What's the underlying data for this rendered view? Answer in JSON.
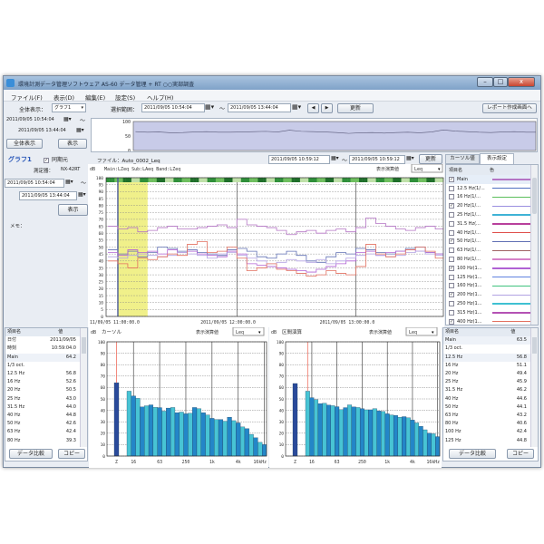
{
  "window": {
    "title": "環境計測データ管理ソフトウェア AS-60 データ管理 + RT ○○実部調査",
    "minimize": "–",
    "maximize": "□",
    "close": "x"
  },
  "menu": [
    "ファイル(F)",
    "表示(D)",
    "編集(E)",
    "設定(S)",
    "ヘルプ(H)"
  ],
  "toolbar": {
    "overall_label": "全体表示：",
    "graph_select": "グラフ1",
    "range_label": "選択範囲：",
    "range_start": "2011/09/05 10:54:04",
    "range_end": "2011/09/05 13:44:04",
    "tilde": "～",
    "prev": "◀",
    "next": "▶",
    "update": "更新",
    "report": "レポート作成画面へ"
  },
  "overview_side": {
    "start": "2011/09/05 10:54:04",
    "end": "2011/09/05 13:44:04",
    "all_button": "全体表示",
    "show_button": "表示"
  },
  "graph_panel": {
    "name": "グラフ1",
    "sync_label": "同期元",
    "sync_checked": true,
    "device_label": "測定器：",
    "device": "NX-42RT",
    "start": "2011/09/05 10:54:04",
    "end": "2011/09/05 13:44:04",
    "show_button": "表示",
    "memo_label": "メモ："
  },
  "main_header": {
    "file": "ファイル：Auto_0002_Leq",
    "cursor_start": "2011/09/05 10:59:12",
    "cursor_end": "2011/09/05 10:59:12",
    "update": "更新"
  },
  "tabs": [
    {
      "label": "カーソル値",
      "active": false
    },
    {
      "label": "表示設定",
      "active": true
    }
  ],
  "legend_list": {
    "col_name": "項目名",
    "col_color": "色",
    "items": [
      {
        "label": "Main",
        "checked": true,
        "color": "#b474c4"
      },
      {
        "label": "12.5 Hz(1/...",
        "checked": false,
        "color": "#4f6fc0"
      },
      {
        "label": "16 Hz(1/...",
        "checked": false,
        "color": "#5cbf5c"
      },
      {
        "label": "20 Hz(1/...",
        "checked": true,
        "color": "#9a8ee0"
      },
      {
        "label": "25 Hz(1/...",
        "checked": false,
        "color": "#3fb3d6"
      },
      {
        "label": "31.5 Hz(...",
        "checked": false,
        "color": "#b8409c"
      },
      {
        "label": "40 Hz(1/...",
        "checked": false,
        "color": "#e0504c"
      },
      {
        "label": "50 Hz(1/...",
        "checked": true,
        "color": "#6070b4"
      },
      {
        "label": "63 Hz(1/...",
        "checked": false,
        "color": "#a06262"
      },
      {
        "label": "80 Hz(1/...",
        "checked": false,
        "color": "#d682c8"
      },
      {
        "label": "100 Hz(1...",
        "checked": true,
        "color": "#b062d4"
      },
      {
        "label": "125 Hz(1...",
        "checked": false,
        "color": "#5f82e0"
      },
      {
        "label": "160 Hz(1...",
        "checked": false,
        "color": "#3fc27e"
      },
      {
        "label": "200 Hz(1...",
        "checked": true,
        "color": "#b2a2e2"
      },
      {
        "label": "250 Hz(1...",
        "checked": false,
        "color": "#3fc1d2"
      },
      {
        "label": "315 Hz(1...",
        "checked": false,
        "color": "#b452b4"
      },
      {
        "label": "400 Hz(1...",
        "checked": true,
        "color": "#e27060"
      }
    ]
  },
  "chart_data": [
    {
      "type": "line",
      "title": "",
      "unit_label": "dB",
      "info": "Main:LZeq Sub:LAeq Band:LZeq",
      "calc_label": "表示演算値",
      "calc_value": "Leq",
      "ylim": [
        0,
        100
      ],
      "yticks": [
        100,
        95,
        90,
        85,
        80,
        75,
        70,
        65,
        60,
        55,
        50,
        45,
        40,
        35,
        30,
        25,
        20,
        15,
        10,
        5,
        0
      ],
      "xlim": [
        "10:54:04",
        "13:44:04"
      ],
      "xtick_labels": [
        "11/09/05 11:00:00.0",
        "2011/09/05 12:00:00.0",
        "2011/09/05 13:00:00.0"
      ],
      "xticks": [
        "11:00",
        "12:00",
        "13:00"
      ],
      "highlight_range": [
        "11:00",
        "11:15"
      ],
      "highlight_color": "#f0f08a",
      "x": [
        "10:55",
        "11:00",
        "11:05",
        "11:10",
        "11:15",
        "11:20",
        "11:25",
        "11:30",
        "11:35",
        "11:40",
        "11:45",
        "11:50",
        "11:55",
        "12:00",
        "12:05",
        "12:10",
        "12:15",
        "12:20",
        "12:25",
        "12:30",
        "12:35",
        "12:40",
        "12:45",
        "12:50",
        "12:55",
        "13:00",
        "13:05",
        "13:10",
        "13:15",
        "13:20",
        "13:25",
        "13:30",
        "13:35",
        "13:40"
      ],
      "series": [
        {
          "name": "Main",
          "color": "#b474c4",
          "values": [
            65,
            63,
            64,
            61,
            62,
            64,
            65,
            63,
            63,
            64,
            65,
            66,
            64,
            70,
            66,
            65,
            64,
            62,
            59,
            61,
            62,
            60,
            62,
            63,
            61,
            64,
            71,
            67,
            65,
            63,
            62,
            64,
            65,
            63
          ]
        },
        {
          "name": "50 Hz",
          "color": "#6070b4",
          "values": [
            48,
            45,
            47,
            43,
            46,
            50,
            49,
            47,
            48,
            46,
            45,
            44,
            48,
            49,
            47,
            43,
            42,
            45,
            47,
            44,
            40,
            39,
            43,
            46,
            45,
            49,
            48,
            46,
            45,
            47,
            49,
            50,
            46,
            45
          ]
        },
        {
          "name": "100 Hz",
          "color": "#b062d4",
          "values": [
            46,
            44,
            48,
            46,
            47,
            45,
            48,
            46,
            47,
            45,
            44,
            43,
            47,
            45,
            38,
            37,
            36,
            35,
            34,
            33,
            32,
            34,
            36,
            38,
            40,
            46,
            47,
            44,
            46,
            47,
            48,
            47,
            46,
            45
          ]
        },
        {
          "name": "200 Hz",
          "color": "#b2a2e2",
          "values": [
            43,
            42,
            44,
            45,
            44,
            43,
            44,
            46,
            45,
            44,
            42,
            45,
            46,
            44,
            42,
            40,
            38,
            39,
            41,
            40,
            39,
            41,
            38,
            40,
            42,
            44,
            45,
            44,
            43,
            44,
            46,
            47,
            45,
            44
          ]
        },
        {
          "name": "400 Hz",
          "color": "#e27060",
          "values": [
            40,
            38,
            35,
            42,
            41,
            43,
            45,
            44,
            52,
            54,
            46,
            47,
            50,
            42,
            33,
            35,
            38,
            34,
            33,
            31,
            29,
            30,
            33,
            31,
            30,
            36,
            52,
            45,
            43,
            45,
            48,
            50,
            47,
            42
          ]
        }
      ]
    },
    {
      "type": "bar",
      "title": "カーソル",
      "unit_label": "dB",
      "calc_label": "表示演算値",
      "calc_value": "Leq",
      "ylim": [
        0,
        100
      ],
      "yticks": [
        100,
        90,
        80,
        70,
        60,
        50,
        40,
        30,
        20,
        10,
        0
      ],
      "xtick_labels": [
        "Z",
        "16",
        "63",
        "250",
        "1k",
        "4k",
        "16kHz"
      ],
      "categories": [
        "Main",
        "12.5",
        "16",
        "20",
        "25",
        "31.5",
        "40",
        "50",
        "63",
        "80",
        "100",
        "125",
        "160",
        "200",
        "250",
        "315",
        "400",
        "500",
        "630",
        "800",
        "1k",
        "1.25k",
        "1.6k",
        "2k",
        "2.5k",
        "3.15k",
        "4k",
        "5k",
        "6.3k",
        "8k",
        "10k",
        "12.5k",
        "16k"
      ],
      "values": [
        64.2,
        56.8,
        52.6,
        50.5,
        43.0,
        44.0,
        44.8,
        42.6,
        42.4,
        39.3,
        42,
        42.5,
        38,
        38.5,
        37,
        37.5,
        42.5,
        41.5,
        38,
        36,
        33,
        32,
        32,
        30.5,
        34,
        31,
        29,
        25.5,
        24,
        19,
        16,
        12,
        10
      ],
      "cursor": "Main"
    },
    {
      "type": "bar",
      "title": "区間演算",
      "unit_label": "dB",
      "calc_label": "表示演算値",
      "calc_value": "Leq",
      "ylim": [
        0,
        100
      ],
      "yticks": [
        100,
        90,
        80,
        70,
        60,
        50,
        40,
        30,
        20,
        10,
        0
      ],
      "xtick_labels": [
        "Z",
        "16",
        "63",
        "250",
        "1k",
        "4k",
        "16kHz"
      ],
      "categories": [
        "Main",
        "12.5",
        "16",
        "20",
        "25",
        "31.5",
        "40",
        "50",
        "63",
        "80",
        "100",
        "125",
        "160",
        "200",
        "250",
        "315",
        "400",
        "500",
        "630",
        "800",
        "1k",
        "1.25k",
        "1.6k",
        "2k",
        "2.5k",
        "3.15k",
        "4k",
        "5k",
        "6.3k",
        "8k",
        "10k",
        "12.5k",
        "16k"
      ],
      "values": [
        63.5,
        56.8,
        51.1,
        49.4,
        45.9,
        46.2,
        44.6,
        44.1,
        43.2,
        40.6,
        42.4,
        44.8,
        43,
        42.5,
        41.5,
        40.5,
        40.5,
        41.5,
        39.5,
        39,
        37,
        36,
        35.5,
        34,
        34.5,
        33.5,
        31.5,
        29,
        26,
        23,
        20,
        19.5,
        17
      ],
      "cursor": "12.5"
    },
    {
      "type": "line",
      "title": "",
      "ylim": [
        0,
        100
      ],
      "yticks": [
        100,
        50,
        0
      ],
      "series_ref": "Main",
      "fill": "#c8cbe8"
    }
  ],
  "left_table": {
    "col_name": "項目名",
    "col_value": "値",
    "rows": [
      [
        "日付",
        "2011/09/05"
      ],
      [
        "時刻",
        "10:59:04.0"
      ],
      [
        "Main",
        "64.2"
      ],
      [
        "1/3 oct.",
        ""
      ],
      [
        "12.5 Hz",
        "56.8"
      ],
      [
        "16 Hz",
        "52.6"
      ],
      [
        "20 Hz",
        "50.5"
      ],
      [
        "25 Hz",
        "43.0"
      ],
      [
        "31.5 Hz",
        "44.0"
      ],
      [
        "40 Hz",
        "44.8"
      ],
      [
        "50 Hz",
        "42.6"
      ],
      [
        "63 Hz",
        "42.4"
      ],
      [
        "80 Hz",
        "39.3"
      ]
    ],
    "compare": "データ比較",
    "copy": "コピー"
  },
  "right_table": {
    "col_name": "項目名",
    "col_value": "値",
    "rows": [
      [
        "Main",
        "63.5"
      ],
      [
        "1/3 oct.",
        ""
      ],
      [
        "12.5 Hz",
        "56.8"
      ],
      [
        "16 Hz",
        "51.1"
      ],
      [
        "20 Hz",
        "49.4"
      ],
      [
        "25 Hz",
        "45.9"
      ],
      [
        "31.5 Hz",
        "46.2"
      ],
      [
        "40 Hz",
        "44.6"
      ],
      [
        "50 Hz",
        "44.1"
      ],
      [
        "63 Hz",
        "43.2"
      ],
      [
        "80 Hz",
        "40.6"
      ],
      [
        "100 Hz",
        "42.4"
      ],
      [
        "125 Hz",
        "44.8"
      ]
    ],
    "compare": "データ比較",
    "copy": "コピー"
  }
}
